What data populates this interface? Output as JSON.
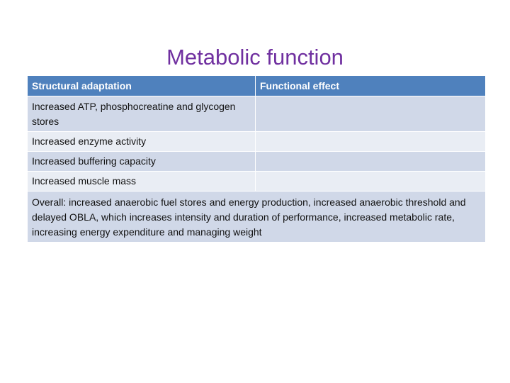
{
  "slide": {
    "title": "Metabolic function"
  },
  "table": {
    "headers": [
      "Structural adaptation",
      "Functional effect"
    ],
    "rows": [
      {
        "adaptation": "Increased ATP, phosphocreatine and glycogen stores",
        "effect": ""
      },
      {
        "adaptation": "Increased enzyme activity",
        "effect": ""
      },
      {
        "adaptation": "Increased buffering capacity",
        "effect": ""
      },
      {
        "adaptation": "Increased muscle mass",
        "effect": ""
      }
    ],
    "summary": "Overall: increased anaerobic fuel stores and energy production, increased anaerobic threshold and delayed OBLA, which increases intensity and duration of performance, increased metabolic rate, increasing energy expenditure and managing weight"
  },
  "colors": {
    "title": "#7030a0",
    "header_bg": "#4f81bd",
    "row_bg": "#d0d8e8",
    "row_alt_bg": "#e9edf4"
  }
}
